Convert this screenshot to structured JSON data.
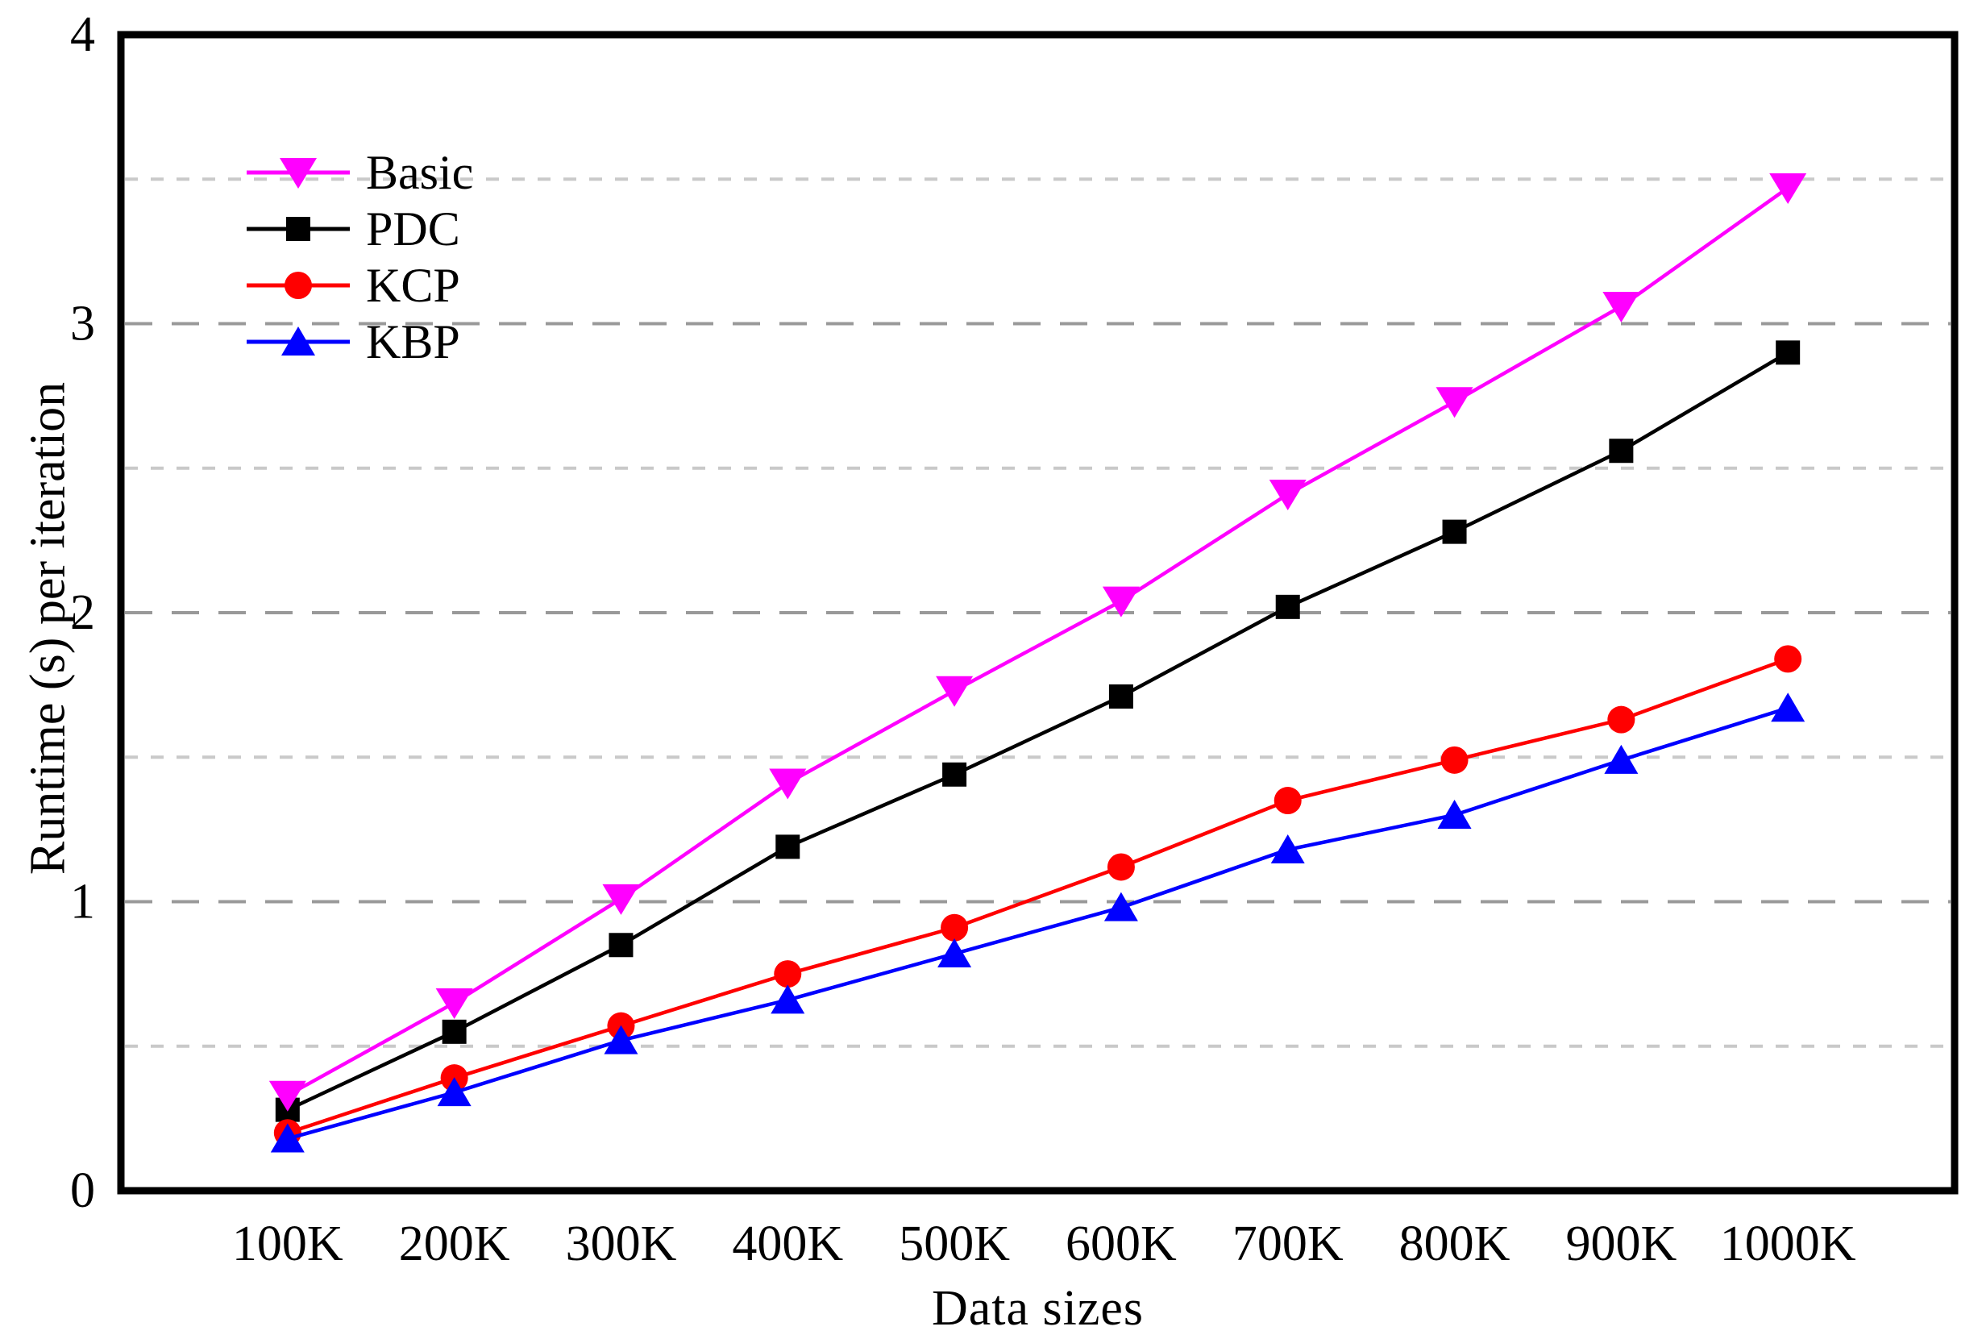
{
  "figure": {
    "background": "#ffffff",
    "frame_color": "#000000",
    "major_grid_color": "#999999",
    "minor_grid_color": "#c9c9c9"
  },
  "chart_data": {
    "type": "line",
    "title": "",
    "xlabel": "Data sizes",
    "ylabel": "Runtime (s) per iteration",
    "categories": [
      "100K",
      "200K",
      "300K",
      "400K",
      "500K",
      "600K",
      "700K",
      "800K",
      "900K",
      "1000K"
    ],
    "y_ticks": [
      0,
      1,
      2,
      3,
      4
    ],
    "ylim": [
      0,
      4
    ],
    "grid": {
      "major_values": [
        1,
        2,
        3
      ],
      "minor_values": [
        0.5,
        1.5,
        2.5,
        3.5
      ],
      "style": "dashed"
    },
    "legend": {
      "position": "upper-left",
      "entries": [
        "Basic",
        "PDC",
        "KCP",
        "KBP"
      ]
    },
    "series": [
      {
        "name": "Basic",
        "color": "#ff00ff",
        "marker": "triangle-down",
        "values": [
          0.33,
          0.65,
          1.01,
          1.41,
          1.73,
          2.04,
          2.41,
          2.73,
          3.06,
          3.47
        ]
      },
      {
        "name": "PDC",
        "color": "#000000",
        "marker": "square",
        "values": [
          0.28,
          0.55,
          0.85,
          1.19,
          1.44,
          1.71,
          2.02,
          2.28,
          2.56,
          2.9
        ]
      },
      {
        "name": "KCP",
        "color": "#ff0000",
        "marker": "circle",
        "values": [
          0.2,
          0.39,
          0.57,
          0.75,
          0.91,
          1.12,
          1.35,
          1.49,
          1.63,
          1.84
        ]
      },
      {
        "name": "KBP",
        "color": "#0000ff",
        "marker": "triangle-up",
        "values": [
          0.18,
          0.34,
          0.52,
          0.66,
          0.82,
          0.98,
          1.18,
          1.3,
          1.49,
          1.67
        ]
      }
    ]
  }
}
